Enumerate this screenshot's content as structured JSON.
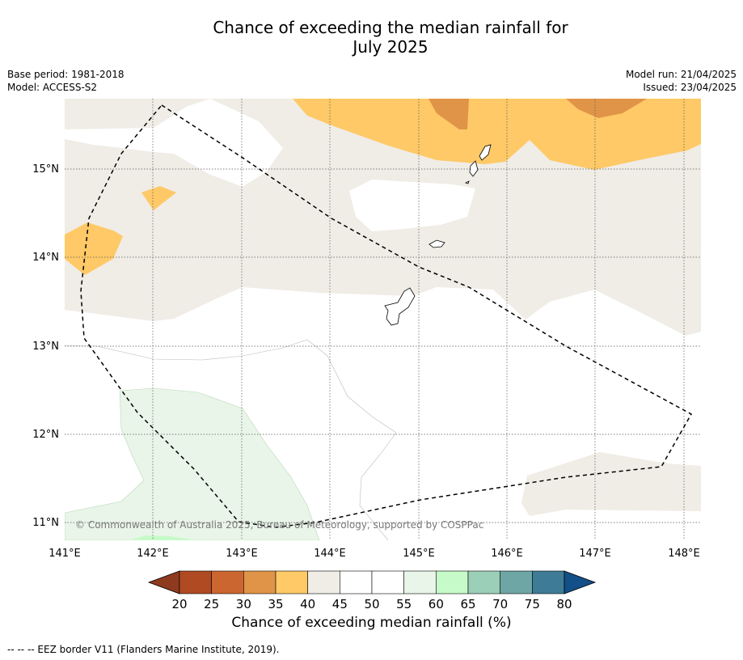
{
  "title": "Chance of exceeding the median rainfall for\nJuly 2025",
  "meta_left": "Base period: 1981-2018\nModel: ACCESS-S2",
  "meta_right": "Model run: 21/04/2025\nIssued: 23/04/2025",
  "map": {
    "lon_ticks": [
      "141°E",
      "142°E",
      "143°E",
      "144°E",
      "145°E",
      "146°E",
      "147°E",
      "148°E"
    ],
    "lat_ticks": [
      "15°N",
      "14°N",
      "13°N",
      "12°N",
      "11°N"
    ],
    "copyright": "© Commonwealth of Australia 2025, Bureau of Meteorology, supported by COSPPac"
  },
  "colorbar": {
    "labels": [
      "20",
      "25",
      "30",
      "35",
      "40",
      "45",
      "50",
      "55",
      "60",
      "65",
      "70",
      "75",
      "80"
    ],
    "colors": [
      "#8e3a1f",
      "#b04a22",
      "#cc6630",
      "#e09448",
      "#fec966",
      "#f0ece6",
      "#ffffff",
      "#ffffff",
      "#e9f5e8",
      "#c6fac8",
      "#9ccfb8",
      "#6ea6a6",
      "#3e7b96",
      "#134f88"
    ],
    "title": "Chance of exceeding median rainfall (%)"
  },
  "footnote": "-- -- -- EEZ border V11 (Flanders Marine Institute, 2019)."
}
